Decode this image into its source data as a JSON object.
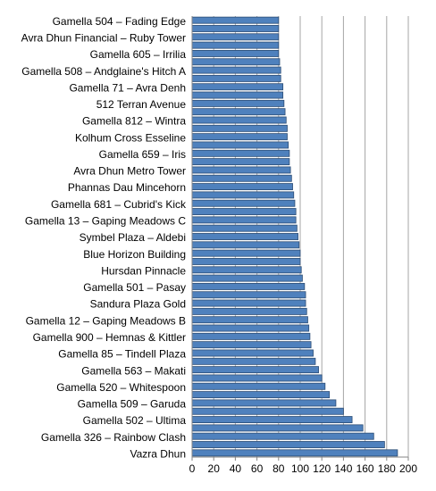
{
  "chart_data": {
    "type": "barh",
    "categories": [
      "Gamella 504 – Fading Edge",
      null,
      "Avra Dhun Financial – Ruby Tower",
      null,
      "Gamella 605 – Irrilia",
      null,
      "Gamella 508 – Andglaine's Hitch A",
      null,
      "Gamella 71 – Avra Denh",
      null,
      "512 Terran Avenue",
      null,
      "Gamella 812 – Wintra",
      null,
      "Kolhum Cross Esseline",
      null,
      "Gamella 659 – Iris",
      null,
      "Avra Dhun Metro Tower",
      null,
      "Phannas Dau Mincehorn",
      null,
      "Gamella 681 – Cubrid's Kick",
      null,
      "Gamella 13 – Gaping Meadows C",
      null,
      "Symbel Plaza – Aldebi",
      null,
      "Blue Horizon Building",
      null,
      "Hursdan Pinnacle",
      null,
      "Gamella 501 – Pasay",
      null,
      "Sandura Plaza Gold",
      null,
      "Gamella 12 – Gaping Meadows B",
      null,
      "Gamella 900 – Hemnas & Kittler",
      null,
      "Gamella 85 – Tindell Plaza",
      null,
      "Gamella 563 – Makati",
      null,
      "Gamella 520 – Whitespoon",
      null,
      "Gamella 509 – Garuda",
      null,
      "Gamella 502 – Ultima",
      null,
      "Gamella 326 – Rainbow Clash",
      null,
      "Vazra Dhun"
    ],
    "values": [
      80,
      80,
      80,
      80,
      80,
      81,
      82,
      82,
      84,
      84,
      85,
      86,
      87,
      88,
      88,
      89,
      90,
      90,
      91,
      92,
      93,
      94,
      95,
      96,
      96,
      97,
      98,
      99,
      100,
      100,
      101,
      102,
      104,
      105,
      105,
      106,
      107,
      108,
      109,
      110,
      112,
      114,
      117,
      120,
      123,
      127,
      133,
      140,
      148,
      158,
      168,
      178,
      190
    ],
    "color": "#4f81bd",
    "xlim": [
      0,
      200
    ],
    "xticks": [
      0,
      20,
      40,
      60,
      80,
      100,
      120,
      140,
      160,
      180,
      200
    ],
    "grid": true
  }
}
